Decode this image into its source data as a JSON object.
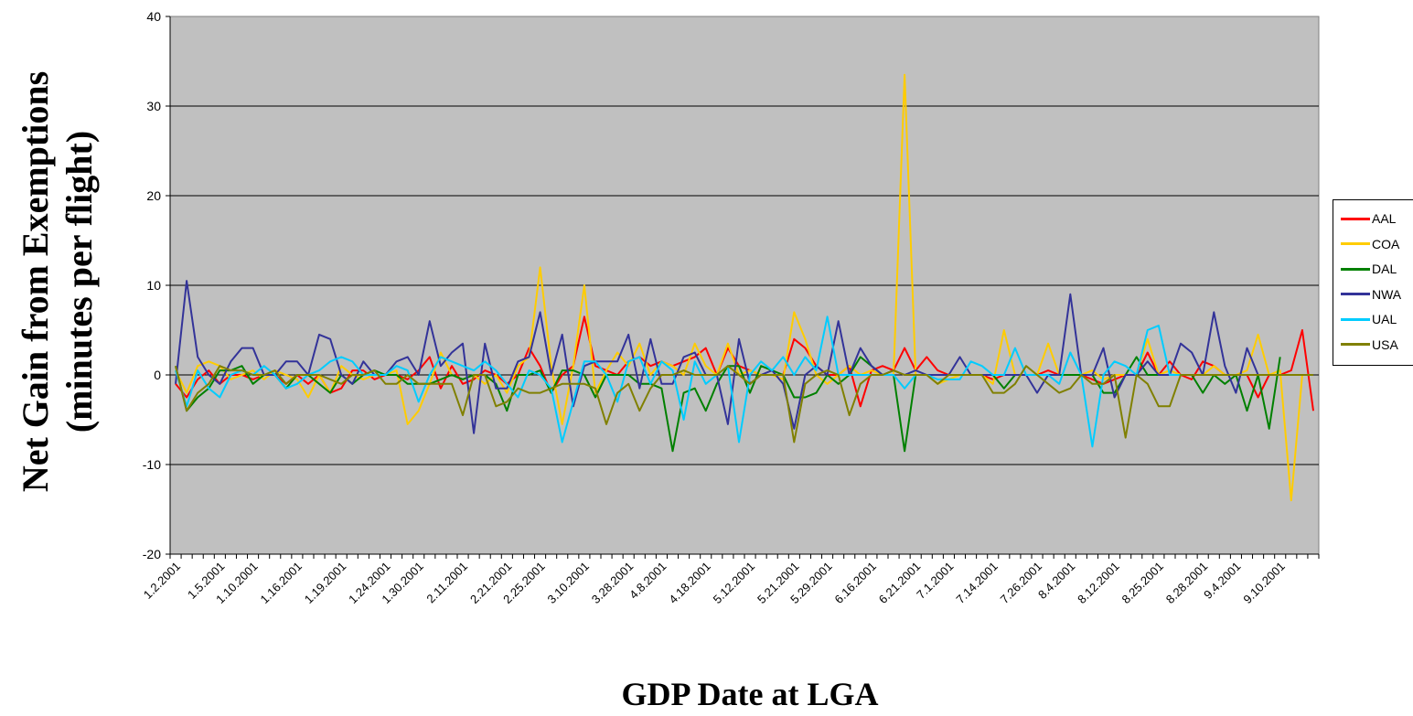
{
  "chart_data": {
    "type": "line",
    "title": "",
    "xlabel": "GDP Date at LGA",
    "ylabel_lines": [
      "Net Gain from Exemptions",
      "(minutes per flight)"
    ],
    "ylim": [
      -20,
      40
    ],
    "yticks": [
      -20,
      -10,
      0,
      10,
      20,
      30,
      40
    ],
    "x_tick_labels": [
      "1.2.2001",
      "1.5.2001",
      "1.10.2001",
      "1.16.2001",
      "1.19.2001",
      "1.24.2001",
      "1.30.2001",
      "2.11.2001",
      "2.21.2001",
      "2.25.2001",
      "3.10.2001",
      "3.28.2001",
      "4.8.2001",
      "4.18.2001",
      "5.12.2001",
      "5.21.2001",
      "5.29.2001",
      "6.16.2001",
      "6.21.2001",
      "7.1.2001",
      "7.14.2001",
      "7.26.2001",
      "8.4.2001",
      "8.12.2001",
      "8.25.2001",
      "8.28.2001",
      "9.4.2001",
      "9.10.2001"
    ],
    "n_points": 104,
    "grid": "horizontal",
    "plot_background": "#c0c0c0",
    "legend_position": "right",
    "series": [
      {
        "name": "AAL",
        "color": "#ff0000",
        "values": [
          -1,
          -2.5,
          -0.5,
          0.5,
          -1,
          0,
          0,
          -0.5,
          0,
          0,
          -1,
          0,
          -1,
          0,
          -2,
          -1.5,
          0.5,
          0.5,
          -0.5,
          0,
          0,
          -0.5,
          0.5,
          2,
          -1.5,
          1,
          -1,
          -0.5,
          0.5,
          0,
          -1,
          0,
          3,
          1,
          -2,
          0,
          1,
          6.5,
          1,
          0.5,
          0,
          1.5,
          2,
          1,
          1.5,
          1,
          1.5,
          2,
          3,
          0,
          3,
          1,
          0.5,
          0,
          0,
          0,
          4,
          3,
          1,
          0,
          0,
          1,
          -3.5,
          0.5,
          1,
          0.5,
          3,
          0.5,
          2,
          0.5,
          0,
          0,
          0,
          0,
          -0.5,
          0,
          0,
          0,
          0,
          0.5,
          0,
          0,
          0,
          -0.5,
          -1,
          -0.5,
          0,
          0,
          2.5,
          0,
          1.5,
          0,
          -0.5,
          1.5,
          1,
          0,
          0,
          0,
          -2.5,
          0,
          0,
          0.5,
          5,
          -4
        ]
      },
      {
        "name": "COA",
        "color": "#ffcc00",
        "values": [
          0.5,
          -2,
          1,
          1.5,
          1,
          -0.5,
          0,
          0.5,
          -0.5,
          0.5,
          0,
          -0.5,
          -2.5,
          0,
          -2,
          1,
          0,
          -0.5,
          0,
          0,
          0.5,
          -5.5,
          -4,
          -1,
          2.5,
          0,
          -0.5,
          0,
          -1,
          0,
          -2,
          1,
          2,
          12,
          1,
          -5.5,
          1,
          10,
          -2,
          0.5,
          2.5,
          1,
          3.5,
          0,
          1.5,
          1,
          0,
          3.5,
          1,
          0,
          3.5,
          0,
          0.5,
          0,
          0,
          -0.5,
          7,
          4,
          0,
          -1,
          0,
          1,
          0,
          0.5,
          0,
          0,
          33.5,
          0,
          0,
          -1,
          -0.5,
          0,
          0,
          0,
          -1,
          5,
          0,
          0,
          0,
          3.5,
          0,
          0,
          0,
          0.5,
          -0.5,
          0,
          0,
          0,
          4,
          0,
          0.5,
          0,
          0,
          0,
          1,
          0,
          0,
          0.5,
          4.5,
          0,
          0.5,
          -14,
          0,
          0
        ]
      },
      {
        "name": "DAL",
        "color": "#008000",
        "values": [
          1,
          -4,
          -2.5,
          -1.5,
          0.5,
          0.5,
          1,
          -1,
          0,
          0,
          -1.5,
          0,
          0,
          -1,
          -2,
          0,
          -1,
          0,
          0.5,
          0,
          0,
          -1,
          -1,
          -1,
          -0.5,
          0,
          -0.5,
          0,
          0,
          -1,
          -4,
          0,
          0,
          0.5,
          -2,
          0.5,
          0.5,
          0,
          -2.5,
          0,
          0,
          0,
          -1,
          -1,
          -1.5,
          -8.5,
          -2,
          -1.5,
          -4,
          -1,
          1,
          1,
          -2,
          1,
          0.5,
          0,
          -2.5,
          -2.5,
          -2,
          0,
          -1,
          0,
          2,
          1,
          0,
          0,
          -8.5,
          0,
          0,
          0,
          0,
          0,
          0,
          0,
          0,
          -1.5,
          0,
          0,
          0,
          0,
          0,
          0,
          0,
          0,
          -2,
          -2,
          0,
          2,
          0,
          0,
          0,
          0,
          0,
          -2,
          0,
          -1,
          0,
          -4,
          0,
          -6,
          2
        ]
      },
      {
        "name": "NWA",
        "color": "#333399",
        "values": [
          -1,
          10.5,
          2,
          0,
          -1,
          1.5,
          3,
          3,
          0,
          0,
          1.5,
          1.5,
          0,
          4.5,
          4,
          0,
          -1,
          1.5,
          0,
          0,
          1.5,
          2,
          0,
          6,
          1,
          2.5,
          3.5,
          -6.5,
          3.5,
          -1.5,
          -1.5,
          1.5,
          2,
          7,
          0,
          4.5,
          -3.5,
          1,
          1.5,
          1.5,
          1.5,
          4.5,
          -1.5,
          4,
          -1,
          -1,
          2,
          2.5,
          0,
          0,
          -5.5,
          4,
          -1,
          0,
          0.5,
          -1,
          -6,
          0,
          1,
          0,
          6,
          0,
          3,
          1,
          0,
          0.5,
          0,
          0.5,
          0,
          0,
          0,
          2,
          0,
          0,
          0,
          0,
          0,
          0,
          -2,
          0,
          0,
          9,
          0,
          0,
          3,
          -2.5,
          0,
          0,
          1.5,
          0,
          0,
          3.5,
          2.5,
          0,
          7,
          1,
          -2,
          3,
          0,
          0
        ]
      },
      {
        "name": "UAL",
        "color": "#00ccff",
        "values": [
          0.5,
          -3.5,
          0.5,
          -1.5,
          -2.5,
          0,
          0.5,
          0,
          1,
          0,
          -1.5,
          -1,
          0,
          0.5,
          1.5,
          2,
          1.5,
          0,
          0,
          0,
          1,
          0.5,
          -3,
          0,
          2,
          1.5,
          1,
          0.5,
          1.5,
          0.5,
          -1,
          -2.5,
          0.5,
          0,
          -1.5,
          -7.5,
          -3,
          1.5,
          1.5,
          0,
          -3,
          1.5,
          2,
          -1,
          1.5,
          0.5,
          -5,
          1.5,
          -1,
          0,
          1,
          -7.5,
          0,
          1.5,
          0.5,
          2,
          0,
          2,
          0.5,
          6.5,
          0,
          0,
          0,
          0,
          0,
          0,
          -1.5,
          0,
          0,
          -0.5,
          -0.5,
          -0.5,
          1.5,
          1,
          0,
          0,
          3,
          0,
          0,
          0,
          -1,
          2.5,
          0,
          -8,
          0,
          1.5,
          1,
          0,
          5,
          5.5,
          0,
          0,
          0,
          0,
          0,
          0,
          0,
          0,
          0,
          0,
          0,
          0,
          0,
          0
        ]
      },
      {
        "name": "USA",
        "color": "#808000",
        "values": [
          1,
          -4,
          -2,
          -1,
          1,
          0.5,
          0.5,
          0,
          0,
          0.5,
          -1,
          0,
          0,
          0,
          -0.5,
          -1,
          0,
          0,
          0.5,
          -1,
          -1,
          0,
          -1,
          -1,
          -1,
          -1,
          -4.5,
          0,
          0,
          -3.5,
          -3,
          -1.5,
          -2,
          -2,
          -1.5,
          -1,
          -1,
          -1,
          -1.5,
          -5.5,
          -2,
          -1,
          -4,
          -1.5,
          0,
          0,
          0.5,
          0,
          0,
          0,
          1,
          0,
          -1,
          0,
          0,
          0,
          -7.5,
          -1,
          0,
          0.5,
          0,
          -4.5,
          -1,
          0,
          0,
          0.5,
          0,
          0,
          0,
          -1,
          0,
          0,
          0,
          0,
          -2,
          -2,
          -1,
          1,
          0,
          -1,
          -2,
          -1.5,
          0,
          -1,
          -1,
          0,
          -7,
          0,
          -1,
          -3.5,
          -3.5,
          0,
          0,
          0,
          0,
          0,
          0,
          0,
          0,
          0,
          0,
          0,
          0,
          0
        ]
      }
    ]
  }
}
